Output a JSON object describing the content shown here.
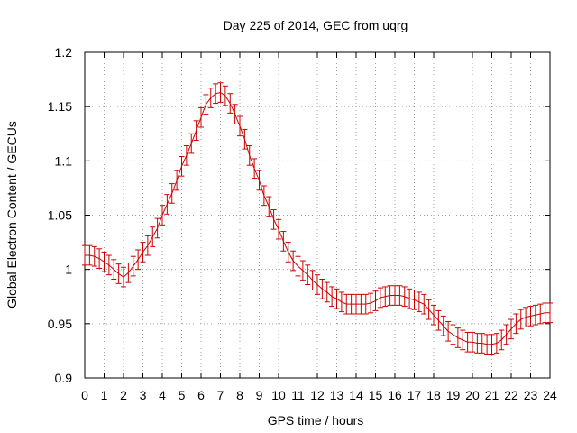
{
  "chart_data": {
    "type": "line",
    "title": "Day 225 of 2014, GEC from uqrg",
    "xlabel": "GPS time / hours",
    "ylabel": "Global Electron Content / GECUs",
    "xlim": [
      0,
      24
    ],
    "ylim": [
      0.9,
      1.2
    ],
    "x_ticks": [
      "0",
      "1",
      "2",
      "3",
      "4",
      "5",
      "6",
      "7",
      "8",
      "9",
      "10",
      "11",
      "12",
      "13",
      "14",
      "15",
      "16",
      "17",
      "18",
      "19",
      "20",
      "21",
      "22",
      "23",
      "24"
    ],
    "y_ticks": [
      "0.9",
      "0.95",
      "1",
      "1.05",
      "1.1",
      "1.15",
      "1.2"
    ],
    "grid": true,
    "error_bars": true,
    "series_color": "#cc0000",
    "error_half_width": 0.009,
    "series": [
      {
        "x": [
          0,
          0.25,
          0.5,
          0.75,
          1,
          1.25,
          1.5,
          1.75,
          2,
          2.25,
          2.5,
          2.75,
          3,
          3.25,
          3.5,
          3.75,
          4,
          4.25,
          4.5,
          4.75,
          5,
          5.25,
          5.5,
          5.75,
          6,
          6.25,
          6.5,
          6.75,
          7,
          7.25,
          7.5,
          7.75,
          8,
          8.25,
          8.5,
          8.75,
          9,
          9.25,
          9.5,
          9.75,
          10,
          10.25,
          10.5,
          10.75,
          11,
          11.25,
          11.5,
          11.75,
          12,
          12.25,
          12.5,
          12.75,
          13,
          13.25,
          13.5,
          13.75,
          14,
          14.25,
          14.5,
          14.75,
          15,
          15.25,
          15.5,
          15.75,
          16,
          16.25,
          16.5,
          16.75,
          17,
          17.25,
          17.5,
          17.75,
          18,
          18.25,
          18.5,
          18.75,
          19,
          19.25,
          19.5,
          19.75,
          20,
          20.25,
          20.5,
          20.75,
          21,
          21.25,
          21.5,
          21.75,
          22,
          22.25,
          22.5,
          22.75,
          23,
          23.25,
          23.5,
          23.75,
          24
        ],
        "y": [
          1.013,
          1.013,
          1.012,
          1.01,
          1.007,
          1.004,
          1.0,
          0.996,
          0.993,
          0.997,
          1.003,
          1.009,
          1.016,
          1.022,
          1.03,
          1.038,
          1.05,
          1.06,
          1.07,
          1.082,
          1.095,
          1.105,
          1.116,
          1.128,
          1.14,
          1.152,
          1.158,
          1.162,
          1.163,
          1.16,
          1.153,
          1.143,
          1.132,
          1.12,
          1.105,
          1.093,
          1.082,
          1.068,
          1.058,
          1.046,
          1.037,
          1.026,
          1.016,
          1.008,
          1.003,
          0.999,
          0.995,
          0.99,
          0.986,
          0.982,
          0.979,
          0.975,
          0.973,
          0.97,
          0.968,
          0.968,
          0.968,
          0.968,
          0.968,
          0.969,
          0.971,
          0.974,
          0.975,
          0.976,
          0.976,
          0.976,
          0.975,
          0.973,
          0.972,
          0.97,
          0.968,
          0.963,
          0.958,
          0.953,
          0.948,
          0.943,
          0.94,
          0.937,
          0.935,
          0.933,
          0.933,
          0.932,
          0.932,
          0.931,
          0.931,
          0.932,
          0.935,
          0.94,
          0.945,
          0.95,
          0.954,
          0.956,
          0.957,
          0.958,
          0.959,
          0.96,
          0.96
        ]
      }
    ]
  }
}
